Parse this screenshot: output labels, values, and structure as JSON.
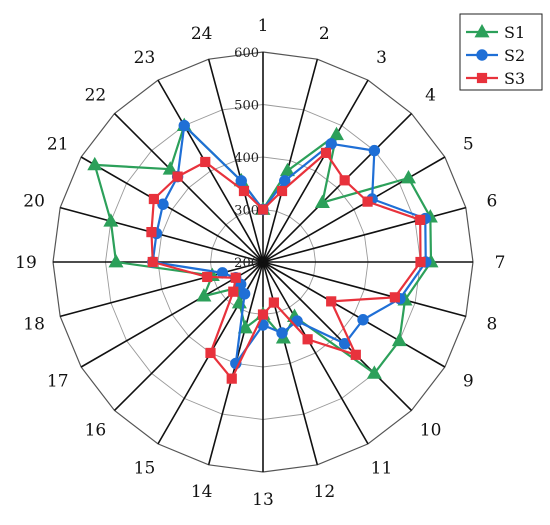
{
  "chart_data": {
    "type": "radar",
    "categories": [
      "1",
      "2",
      "3",
      "4",
      "5",
      "6",
      "7",
      "8",
      "9",
      "10",
      "11",
      "12",
      "13",
      "14",
      "15",
      "16",
      "17",
      "18",
      "19",
      "20",
      "21",
      "22",
      "23",
      "24"
    ],
    "r_ticks": [
      200,
      300,
      400,
      500,
      600
    ],
    "rlim": [
      200,
      600
    ],
    "grid": true,
    "legend_position": "top-right",
    "series": [
      {
        "name": "S1",
        "marker": "triangle",
        "color": "#2ca05a",
        "values": [
          300,
          380,
          480,
          360,
          520,
          530,
          520,
          480,
          500,
          500,
          320,
          350,
          300,
          330,
          290,
          270,
          330,
          300,
          480,
          500,
          570,
          450,
          500,
          360
        ]
      },
      {
        "name": "S2",
        "marker": "circle",
        "color": "#1f6fd6",
        "values": [
          300,
          360,
          460,
          500,
          440,
          520,
          510,
          470,
          420,
          420,
          330,
          340,
          320,
          400,
          270,
          260,
          260,
          280,
          410,
          410,
          420,
          430,
          500,
          360
        ]
      },
      {
        "name": "S3",
        "marker": "square",
        "color": "#e8323c",
        "values": [
          300,
          340,
          440,
          420,
          430,
          510,
          500,
          460,
          350,
          450,
          370,
          280,
          300,
          430,
          400,
          280,
          260,
          310,
          410,
          420,
          440,
          430,
          420,
          340
        ]
      }
    ]
  }
}
